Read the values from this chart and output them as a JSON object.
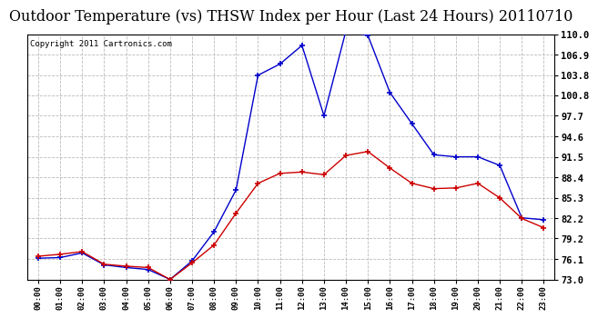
{
  "title": "Outdoor Temperature (vs) THSW Index per Hour (Last 24 Hours) 20110710",
  "copyright": "Copyright 2011 Cartronics.com",
  "hours": [
    "00:00",
    "01:00",
    "02:00",
    "03:00",
    "04:00",
    "05:00",
    "06:00",
    "07:00",
    "08:00",
    "09:00",
    "10:00",
    "11:00",
    "12:00",
    "13:00",
    "14:00",
    "15:00",
    "16:00",
    "17:00",
    "18:00",
    "19:00",
    "20:00",
    "21:00",
    "22:00",
    "23:00"
  ],
  "temp": [
    76.5,
    76.8,
    77.2,
    75.3,
    75.0,
    74.8,
    73.0,
    75.5,
    78.2,
    83.0,
    87.5,
    89.0,
    89.2,
    88.8,
    91.7,
    92.3,
    89.8,
    87.5,
    86.7,
    86.8,
    87.5,
    85.3,
    82.2,
    80.8
  ],
  "thsw": [
    76.2,
    76.3,
    77.0,
    75.2,
    74.8,
    74.5,
    73.0,
    75.8,
    80.2,
    86.5,
    103.8,
    105.5,
    108.3,
    97.7,
    110.5,
    109.8,
    101.2,
    96.5,
    91.8,
    91.5,
    91.5,
    90.2,
    82.3,
    82.0
  ],
  "ylim": [
    73.0,
    110.0
  ],
  "yticks": [
    73.0,
    76.1,
    79.2,
    82.2,
    85.3,
    88.4,
    91.5,
    94.6,
    97.7,
    100.8,
    103.8,
    106.9,
    110.0
  ],
  "temp_color": "#cc0000",
  "thsw_color": "#0000cc",
  "bg_color": "#ffffff",
  "grid_color": "#bbbbbb",
  "title_fontsize": 11.5,
  "copyright_fontsize": 6.5
}
